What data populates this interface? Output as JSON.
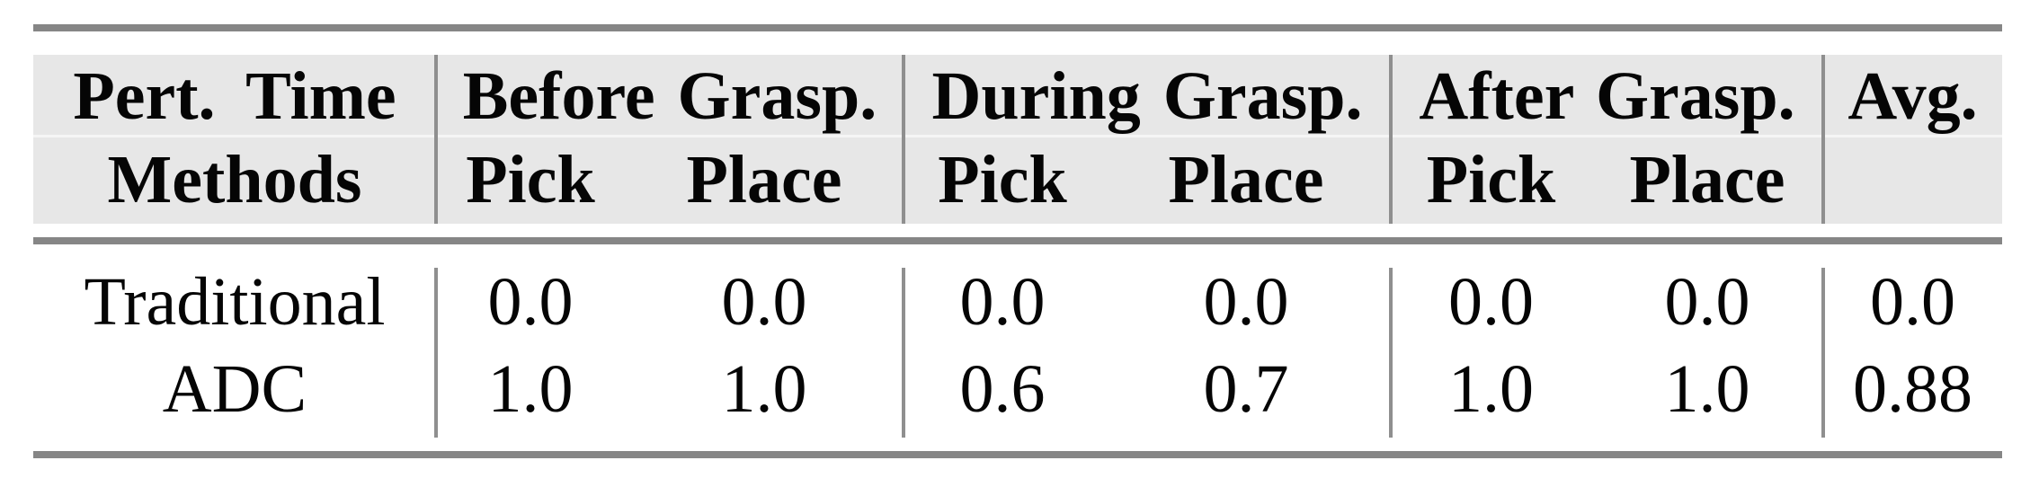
{
  "table": {
    "header": {
      "row1_col1": "Pert. Time",
      "row2_col1": "Methods",
      "groups": [
        {
          "label": "Before Grasp.",
          "sub": [
            "Pick",
            "Place"
          ]
        },
        {
          "label": "During Grasp.",
          "sub": [
            "Pick",
            "Place"
          ]
        },
        {
          "label": "After Grasp.",
          "sub": [
            "Pick",
            "Place"
          ]
        }
      ],
      "avg_label": "Avg."
    },
    "rows": [
      {
        "method": "Traditional",
        "values": [
          "0.0",
          "0.0",
          "0.0",
          "0.0",
          "0.0",
          "0.0"
        ],
        "avg": "0.0"
      },
      {
        "method": "ADC",
        "values": [
          "1.0",
          "1.0",
          "0.6",
          "0.7",
          "1.0",
          "1.0"
        ],
        "avg": "0.88"
      }
    ],
    "colors": {
      "header_bg": "#e7e7e7",
      "rule_gray": "#868686",
      "divider_gray": "#8f8f8f",
      "text": "#050505"
    }
  }
}
